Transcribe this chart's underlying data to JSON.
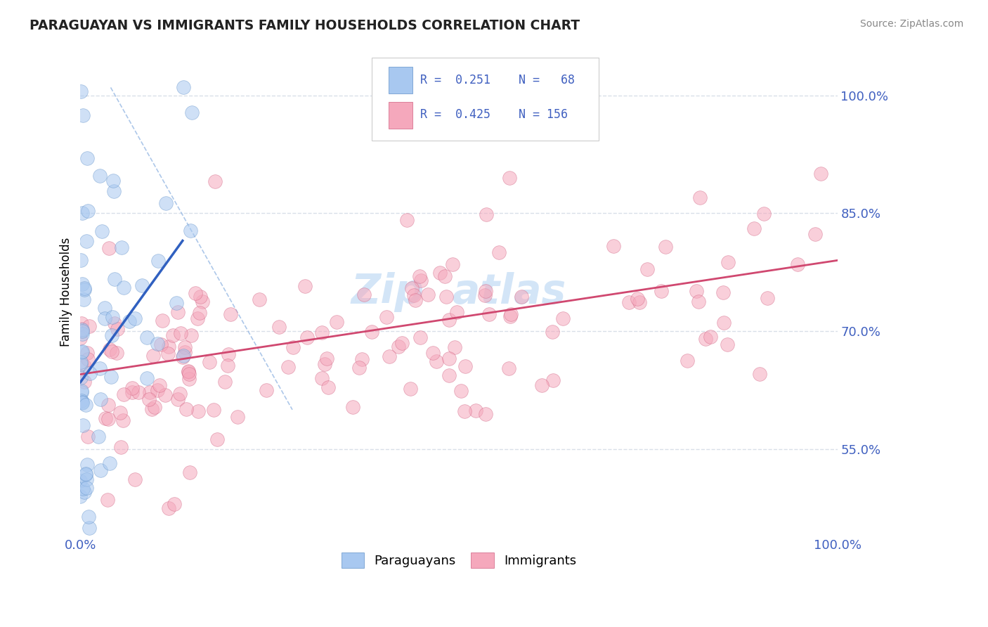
{
  "title": "PARAGUAYAN VS IMMIGRANTS FAMILY HOUSEHOLDS CORRELATION CHART",
  "source_text": "Source: ZipAtlas.com",
  "ylabel": "Family Households",
  "y_tick_values": [
    0.55,
    0.7,
    0.85,
    1.0
  ],
  "x_min": 0.0,
  "x_max": 1.0,
  "y_min": 0.44,
  "y_max": 1.06,
  "blue_color": "#a8c8f0",
  "blue_edge_color": "#6090c8",
  "pink_color": "#f5a8bc",
  "pink_edge_color": "#d06080",
  "blue_line_color": "#3060c0",
  "pink_line_color": "#d04870",
  "diag_color": "#8ab0e0",
  "watermark_color": "#c8dff5",
  "grid_color": "#d8dfe8",
  "label_color": "#4060c0",
  "title_color": "#222222"
}
